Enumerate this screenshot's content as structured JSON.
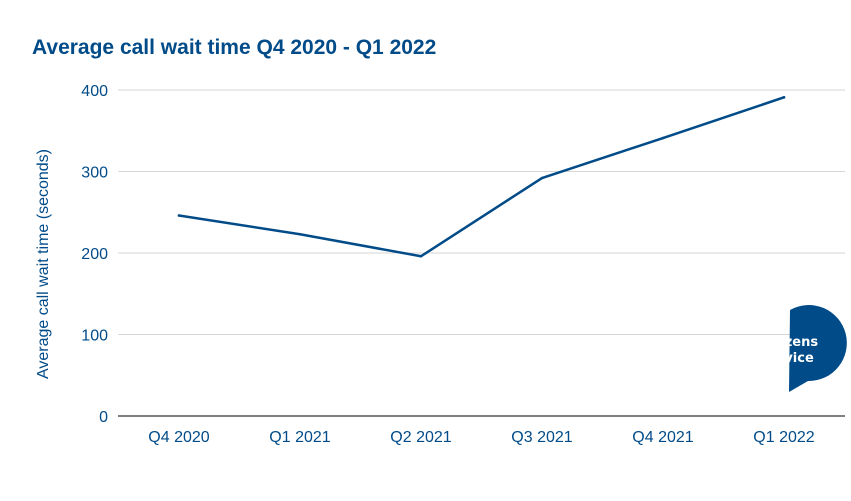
{
  "chart_data": {
    "type": "line",
    "title": "Average call wait time Q4 2020 - Q1 2022",
    "xlabel": "",
    "ylabel": "Average call wait time (seconds)",
    "categories": [
      "Q4 2020",
      "Q1 2021",
      "Q2 2021",
      "Q3 2021",
      "Q4 2021",
      "Q1 2022"
    ],
    "series": [
      {
        "values": [
          246,
          223,
          196,
          292,
          341,
          391
        ]
      }
    ],
    "ylim": [
      0,
      400
    ],
    "yticks": [
      0,
      100,
      200,
      300,
      400
    ],
    "grid": true,
    "legend": "none",
    "line_color": "#004b88",
    "grid_color": "#d6d6d6"
  },
  "logo": {
    "line1": "citizens",
    "line2": "advice",
    "color": "#004b88"
  }
}
